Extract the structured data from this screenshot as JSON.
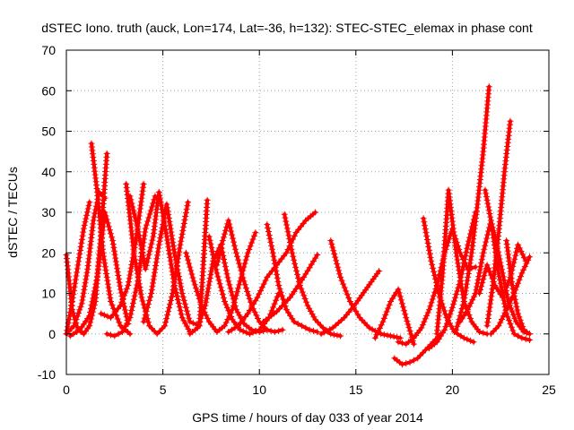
{
  "chart_data": {
    "type": "scatter",
    "title": "dSTEC Iono. truth (auck, Lon=174, Lat=-36, h=132): STEC-STEC_elemax in phase cont",
    "xlabel": "GPS time / hours of day 033 of year 2014",
    "ylabel": "dSTEC  / TECUs",
    "xlim": [
      0,
      25
    ],
    "ylim": [
      -10,
      70
    ],
    "xticks": [
      0,
      5,
      10,
      15,
      20,
      25
    ],
    "yticks": [
      -10,
      0,
      10,
      20,
      30,
      40,
      50,
      60,
      70
    ],
    "grid": true,
    "marker": "+",
    "color": "#ff0000",
    "series": [
      {
        "x": [
          0.0,
          0.3,
          0.6,
          0.9,
          1.2,
          1.5,
          1.8,
          2.1
        ],
        "y": [
          19.5,
          6.0,
          1.0,
          0.0,
          2.0,
          8.0,
          25.0,
          44.5
        ]
      },
      {
        "x": [
          0.0,
          0.4,
          0.8,
          1.1,
          1.4,
          1.7,
          2.0
        ],
        "y": [
          0.0,
          2.0,
          7.5,
          16.0,
          28.0,
          35.0,
          33.5
        ]
      },
      {
        "x": [
          0.0,
          0.3,
          0.6,
          0.9,
          1.2
        ],
        "y": [
          0.0,
          8.0,
          17.0,
          26.0,
          32.5
        ]
      },
      {
        "x": [
          0.2,
          0.7,
          1.2,
          1.6,
          2.0,
          2.4,
          2.8,
          3.2
        ],
        "y": [
          -0.5,
          1.0,
          4.5,
          14.0,
          30.0,
          23.0,
          11.0,
          2.5
        ]
      },
      {
        "x": [
          1.3,
          1.6,
          1.9,
          2.3,
          2.8,
          3.3
        ],
        "y": [
          47.0,
          35.0,
          20.0,
          8.0,
          2.0,
          0.0
        ]
      },
      {
        "x": [
          1.8,
          2.3,
          2.8,
          3.2,
          3.6,
          4.0
        ],
        "y": [
          5.0,
          4.0,
          7.0,
          12.0,
          23.0,
          37.0
        ]
      },
      {
        "x": [
          2.1,
          2.5,
          2.9,
          3.3,
          3.7,
          4.1,
          4.6
        ],
        "y": [
          0.0,
          -0.5,
          0.5,
          4.0,
          13.0,
          26.0,
          34.0
        ]
      },
      {
        "x": [
          3.1,
          3.5,
          3.9,
          4.3,
          4.7,
          5.1,
          5.5,
          5.9,
          6.3
        ],
        "y": [
          37.0,
          20.0,
          9.0,
          2.0,
          0.0,
          2.0,
          10.0,
          22.0,
          32.5
        ]
      },
      {
        "x": [
          3.3,
          3.7,
          4.1,
          4.5,
          4.8,
          5.2,
          5.6,
          6.0,
          6.4
        ],
        "y": [
          34.0,
          26.0,
          16.0,
          24.0,
          35.0,
          24.0,
          12.0,
          4.0,
          0.5
        ]
      },
      {
        "x": [
          4.0,
          4.4,
          4.8,
          5.2,
          5.6,
          6.0,
          6.4,
          6.9,
          7.3
        ],
        "y": [
          3.0,
          10.0,
          22.0,
          32.0,
          20.0,
          10.0,
          3.0,
          2.0,
          33.0
        ]
      },
      {
        "x": [
          6.2,
          6.6,
          7.0,
          7.4,
          7.8,
          8.2,
          8.6,
          9.0,
          9.4,
          9.8
        ],
        "y": [
          20.0,
          13.0,
          7.0,
          3.0,
          0.5,
          2.0,
          6.0,
          13.0,
          20.0,
          25.0
        ]
      },
      {
        "x": [
          6.4,
          6.8,
          7.2,
          7.6,
          8.0,
          8.4,
          8.8,
          9.2,
          9.6,
          10.0,
          10.4
        ],
        "y": [
          0.0,
          1.5,
          7.0,
          18.0,
          22.0,
          13.0,
          6.0,
          2.5,
          1.0,
          0.5,
          1.0
        ]
      },
      {
        "x": [
          7.4,
          7.8,
          8.2,
          8.6,
          9.0,
          9.5,
          10.0,
          10.5,
          11.0
        ],
        "y": [
          24.0,
          15.0,
          8.0,
          3.5,
          1.0,
          0.0,
          1.0,
          4.0,
          10.0
        ]
      },
      {
        "x": [
          7.8,
          8.1,
          8.4,
          8.8,
          9.2,
          9.6,
          10.0,
          10.4,
          10.8,
          11.2
        ],
        "y": [
          17.0,
          23.0,
          28.0,
          20.0,
          13.0,
          7.0,
          3.0,
          1.0,
          0.5,
          1.0
        ]
      },
      {
        "x": [
          8.4,
          8.9,
          9.4,
          9.9,
          10.4,
          10.9,
          11.4,
          11.9,
          12.4,
          12.9
        ],
        "y": [
          0.5,
          2.0,
          5.0,
          9.0,
          14.0,
          17.0,
          20.0,
          25.0,
          28.0,
          30.0
        ]
      },
      {
        "x": [
          10.4,
          10.7,
          11.0,
          11.4,
          11.8,
          12.2,
          12.6,
          13.0
        ],
        "y": [
          27.0,
          20.0,
          12.0,
          6.0,
          3.0,
          2.0,
          1.0,
          0.5
        ]
      },
      {
        "x": [
          11.3,
          11.7,
          12.1,
          12.5,
          12.9,
          13.3,
          13.7,
          14.2
        ],
        "y": [
          29.5,
          20.0,
          12.0,
          7.0,
          3.5,
          1.5,
          0.0,
          -0.5
        ]
      },
      {
        "x": [
          10.2,
          10.9,
          11.6,
          12.3,
          13.0
        ],
        "y": [
          3.0,
          5.5,
          9.0,
          14.0,
          19.5
        ]
      },
      {
        "x": [
          13.7,
          14.2,
          14.7,
          15.2,
          15.7,
          16.3,
          16.8,
          17.3
        ],
        "y": [
          23.0,
          14.0,
          8.0,
          4.0,
          1.5,
          0.0,
          -0.5,
          -1.0
        ]
      },
      {
        "x": [
          13.2,
          13.8,
          14.4,
          15.0,
          15.6,
          16.2
        ],
        "y": [
          0.0,
          1.5,
          4.0,
          7.5,
          11.5,
          15.5
        ]
      },
      {
        "x": [
          16.0,
          16.4,
          16.8,
          17.2,
          17.6,
          18.0
        ],
        "y": [
          -1.0,
          3.0,
          8.0,
          11.0,
          4.0,
          -2.5
        ]
      },
      {
        "x": [
          17.0,
          17.4,
          17.8,
          18.2,
          18.6,
          19.0,
          19.4
        ],
        "y": [
          -6.0,
          -7.5,
          -7.0,
          -6.0,
          -4.0,
          -2.0,
          0.0
        ]
      },
      {
        "x": [
          17.2,
          17.6,
          18.0,
          18.4,
          18.8,
          19.2,
          19.6,
          20.0,
          20.4,
          20.8,
          21.2
        ],
        "y": [
          -2.0,
          -2.5,
          -1.0,
          1.5,
          6.0,
          12.0,
          20.0,
          26.0,
          20.0,
          16.0,
          16.5
        ]
      },
      {
        "x": [
          18.5,
          18.9,
          19.3,
          19.7,
          20.1,
          20.6,
          21.1
        ],
        "y": [
          28.5,
          18.0,
          10.0,
          4.0,
          0.5,
          -1.0,
          -2.0
        ]
      },
      {
        "x": [
          18.8,
          19.2,
          19.6,
          20.0,
          20.4,
          20.8,
          21.2
        ],
        "y": [
          -3.5,
          -2.0,
          1.0,
          6.5,
          13.0,
          22.0,
          30.0
        ]
      },
      {
        "x": [
          19.2,
          19.5,
          19.8,
          20.2,
          20.6,
          21.0,
          21.4,
          21.8
        ],
        "y": [
          0.0,
          15.0,
          35.5,
          20.0,
          8.0,
          3.0,
          0.5,
          0.0
        ]
      },
      {
        "x": [
          20.2,
          20.6,
          21.0,
          21.3,
          21.6,
          21.9
        ],
        "y": [
          1.0,
          8.0,
          20.0,
          32.0,
          45.0,
          61.0
        ]
      },
      {
        "x": [
          20.4,
          20.8,
          21.2,
          21.6,
          22.0,
          22.4,
          22.8,
          23.2,
          23.6,
          24.0
        ],
        "y": [
          3.0,
          6.0,
          10.0,
          20.0,
          28.0,
          15.0,
          5.0,
          0.0,
          -1.0,
          -1.5
        ]
      },
      {
        "x": [
          21.7,
          22.0,
          22.3,
          22.6,
          22.9,
          23.3,
          23.7,
          24.0
        ],
        "y": [
          35.5,
          28.0,
          22.0,
          15.0,
          8.0,
          3.0,
          0.5,
          0.0
        ]
      },
      {
        "x": [
          21.4,
          21.8,
          22.2,
          22.6,
          23.0,
          23.4,
          23.8
        ],
        "y": [
          10.0,
          17.0,
          12.0,
          9.0,
          14.0,
          22.0,
          18.0
        ]
      },
      {
        "x": [
          21.8,
          22.1,
          22.4,
          22.7,
          23.0
        ],
        "y": [
          2.0,
          12.0,
          25.0,
          40.0,
          52.5
        ]
      },
      {
        "x": [
          22.0,
          22.4,
          22.8,
          23.2,
          23.6,
          24.0
        ],
        "y": [
          0.0,
          2.0,
          6.0,
          10.0,
          15.0,
          19.0
        ]
      },
      {
        "x": [
          22.8,
          23.1,
          23.4,
          23.7,
          24.0
        ],
        "y": [
          23.0,
          12.0,
          5.0,
          1.0,
          0.0
        ]
      }
    ]
  }
}
